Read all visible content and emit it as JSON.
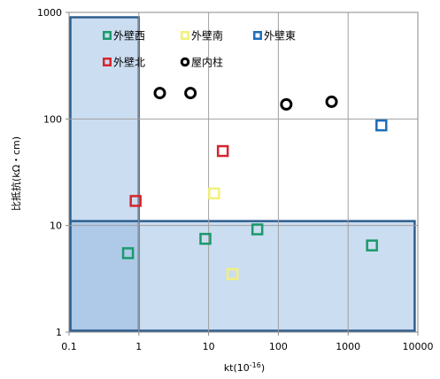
{
  "chart_data": {
    "type": "scatter",
    "title": "",
    "xlabel": "kt(10",
    "xlabel_sup": "-16",
    "xlabel_tail": ")",
    "ylabel": "比抵抗(kΩ・cm)",
    "x_scale": "log",
    "y_scale": "log",
    "xlim": [
      0.1,
      10000
    ],
    "ylim": [
      1,
      1000
    ],
    "x_ticks": [
      "0.1",
      "1",
      "10",
      "100",
      "1000",
      "10000"
    ],
    "y_ticks": [
      "1",
      "10",
      "100",
      "1000"
    ],
    "grid": true,
    "legend_position": "top-inside",
    "series": [
      {
        "name": "外壁西",
        "marker": "square",
        "color": "#1a9a6c",
        "points": [
          [
            0.7,
            5.5
          ],
          [
            9,
            7.5
          ],
          [
            50,
            9.2
          ],
          [
            2200,
            6.5
          ]
        ]
      },
      {
        "name": "外壁南",
        "marker": "square",
        "color": "#f2f07a",
        "points": [
          [
            12,
            20
          ],
          [
            22,
            3.5
          ]
        ]
      },
      {
        "name": "外壁東",
        "marker": "square",
        "color": "#1a6fba",
        "points": [
          [
            3000,
            87
          ]
        ]
      },
      {
        "name": "外壁北",
        "marker": "square",
        "color": "#d6252f",
        "points": [
          [
            0.9,
            17
          ],
          [
            16,
            50
          ]
        ]
      },
      {
        "name": "屋内柱",
        "marker": "circle",
        "color": "#000000",
        "points": [
          [
            2,
            175
          ],
          [
            5.5,
            175
          ],
          [
            130,
            137
          ],
          [
            580,
            145
          ]
        ]
      }
    ],
    "regions": [
      {
        "x": [
          0.1,
          1
        ],
        "y": [
          1,
          900
        ]
      },
      {
        "x": [
          0.1,
          9000
        ],
        "y": [
          1,
          11
        ]
      }
    ]
  }
}
